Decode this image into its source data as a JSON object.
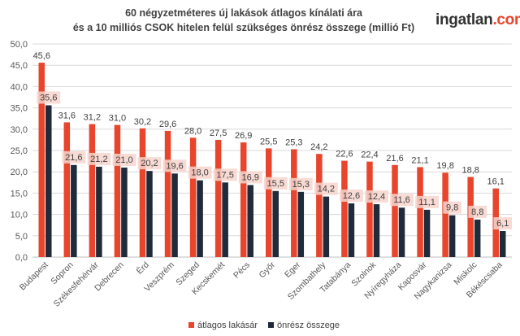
{
  "title_line1": "60 négyzetméteres új lakások átlagos kínálati ára",
  "title_line2": "és a 10 milliós CSOK hitelen felül szükséges önrész összege (millió Ft)",
  "logo": {
    "name": "ingatlan",
    "tld": ".com"
  },
  "colors": {
    "series1": "#e8452c",
    "series2": "#1f2a3a",
    "grid": "#d9d9d9",
    "label_bg": "#f6d5cc"
  },
  "chart_data": {
    "type": "bar",
    "categories": [
      "Budapest",
      "Sopron",
      "Székesfehérvár",
      "Debrecen",
      "Érd",
      "Veszprém",
      "Szeged",
      "Kecskemét",
      "Pécs",
      "Győr",
      "Eger",
      "Szombathely",
      "Tatabánya",
      "Szolnok",
      "Nyíregyháza",
      "Kaposvár",
      "Nagykanizsa",
      "Miskolc",
      "Békéscsaba"
    ],
    "series": [
      {
        "name": "átlagos lakásár",
        "values": [
          45.6,
          31.6,
          31.2,
          31.0,
          30.2,
          29.6,
          28.0,
          27.5,
          26.9,
          25.5,
          25.3,
          24.2,
          22.6,
          22.4,
          21.6,
          21.1,
          19.8,
          18.8,
          16.1
        ]
      },
      {
        "name": "önrész összege",
        "values": [
          35.6,
          21.6,
          21.2,
          21.0,
          20.2,
          19.6,
          18.0,
          17.5,
          16.9,
          15.5,
          15.3,
          14.2,
          12.6,
          12.4,
          11.6,
          11.1,
          9.8,
          8.8,
          6.1
        ]
      }
    ],
    "ylim": [
      0,
      50
    ],
    "yticks": [
      "0,0",
      "5,0",
      "10,0",
      "15,0",
      "20,0",
      "25,0",
      "30,0",
      "35,0",
      "40,0",
      "45,0",
      "50,0"
    ],
    "legend_position": "bottom",
    "grid": true,
    "decimal_separator": ","
  }
}
